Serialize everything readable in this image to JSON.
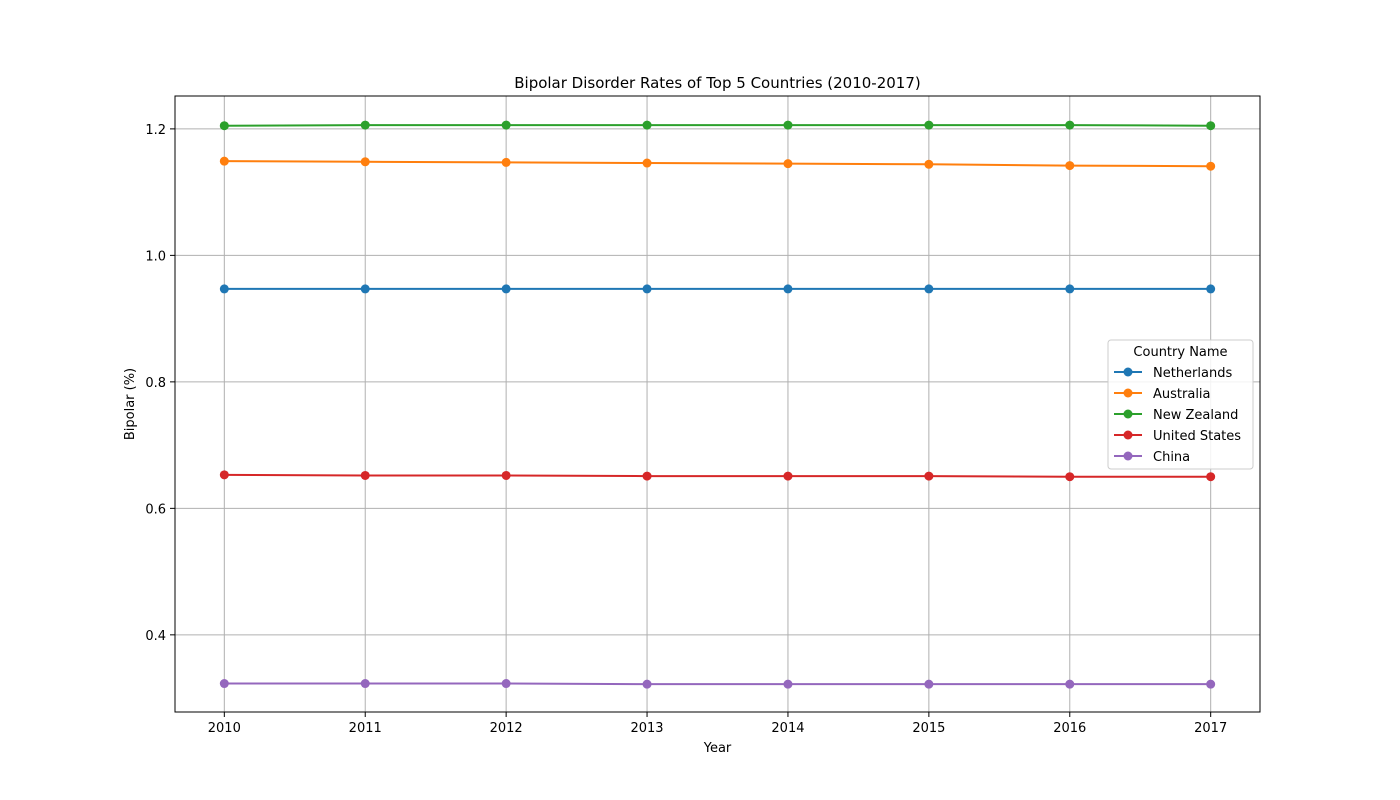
{
  "chart_data": {
    "type": "line",
    "title": "Bipolar Disorder Rates of Top 5 Countries (2010-2017)",
    "xlabel": "Year",
    "ylabel": "Bipolar (%)",
    "x": [
      "2010",
      "2011",
      "2012",
      "2013",
      "2014",
      "2015",
      "2016",
      "2017"
    ],
    "xlim": [
      -0.35,
      7.35
    ],
    "ylim": [
      0.278,
      1.252
    ],
    "yticks": [
      "0.4",
      "0.6",
      "0.8",
      "1.0",
      "1.2"
    ],
    "grid": true,
    "legend": {
      "title": "Country Name",
      "placement": "center-right"
    },
    "series": [
      {
        "name": "Netherlands",
        "color": "#1f77b4",
        "values": [
          0.947,
          0.947,
          0.947,
          0.947,
          0.947,
          0.947,
          0.947,
          0.947
        ]
      },
      {
        "name": "Australia",
        "color": "#ff7f0e",
        "values": [
          1.149,
          1.148,
          1.147,
          1.146,
          1.145,
          1.144,
          1.142,
          1.141
        ]
      },
      {
        "name": "New Zealand",
        "color": "#2ca02c",
        "values": [
          1.205,
          1.206,
          1.206,
          1.206,
          1.206,
          1.206,
          1.206,
          1.205
        ]
      },
      {
        "name": "United States",
        "color": "#d62728",
        "values": [
          0.653,
          0.652,
          0.652,
          0.651,
          0.651,
          0.651,
          0.65,
          0.65
        ]
      },
      {
        "name": "China",
        "color": "#9467bd",
        "values": [
          0.323,
          0.323,
          0.323,
          0.322,
          0.322,
          0.322,
          0.322,
          0.322
        ]
      }
    ]
  }
}
